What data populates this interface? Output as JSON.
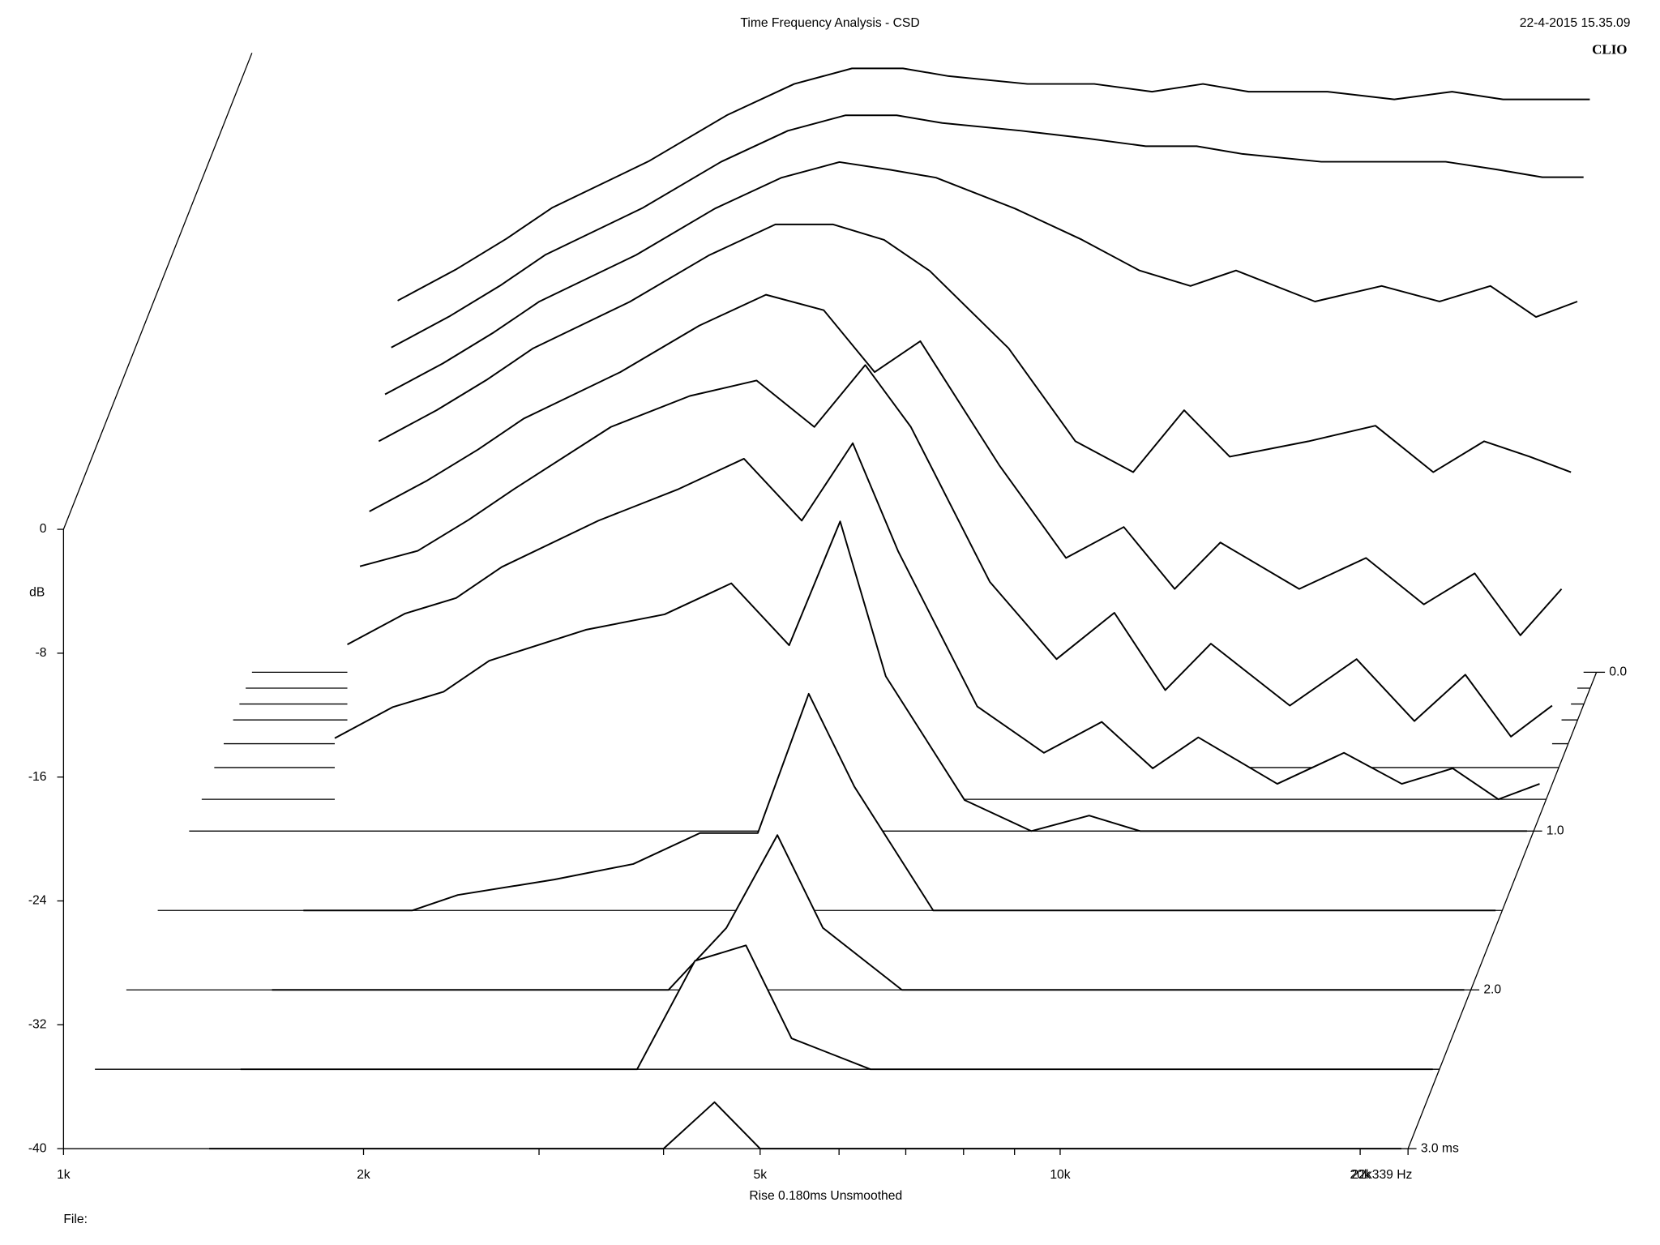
{
  "chart_data": {
    "type": "waterfall",
    "title": "Time Frequency Analysis - CSD",
    "timestamp": "22-4-2015 15.35.09",
    "brand": "CLIO",
    "footer": "Rise 0.180ms   Unsmoothed",
    "file_label": "File:",
    "ylabel": "dB",
    "color": "#000000",
    "xscale": "log",
    "x": [
      1400,
      1600,
      1800,
      2000,
      2500,
      3000,
      3500,
      4000,
      4500,
      5000,
      6000,
      7000,
      8000,
      9000,
      10000,
      12000,
      14000,
      16000,
      18000,
      20000,
      22000
    ],
    "xlim": [
      1000,
      22339
    ],
    "xticks": [
      {
        "value": 1000,
        "label": "1k"
      },
      {
        "value": 2000,
        "label": "2k"
      },
      {
        "value": 5000,
        "label": "5k"
      },
      {
        "value": 10000,
        "label": "10k"
      },
      {
        "value": 20000,
        "label": "20k"
      },
      {
        "value": 22339,
        "label": "22k339 Hz"
      }
    ],
    "xminor_ticks": [
      3000,
      4000,
      6000,
      7000,
      8000,
      9000
    ],
    "ylim": [
      -40,
      0
    ],
    "yticks": [
      0,
      -8,
      -16,
      -24,
      -32,
      -40
    ],
    "zlim": [
      0,
      3
    ],
    "zticks": [
      {
        "value": 0,
        "label": "0.0"
      },
      {
        "value": 1,
        "label": "1.0"
      },
      {
        "value": 2,
        "label": "2.0"
      },
      {
        "value": 3,
        "label": "3.0 ms"
      }
    ],
    "series": [
      {
        "time": 0,
        "values": [
          -16,
          -14,
          -12,
          -10,
          -7,
          -4,
          -2,
          -1,
          -1,
          -1.5,
          -2,
          -2,
          -2.5,
          -2,
          -2.5,
          -2.5,
          -3,
          -2.5,
          -3,
          -3,
          -3
        ]
      },
      {
        "time": 0.1,
        "values": [
          -18,
          -16,
          -14,
          -12,
          -9,
          -6,
          -4,
          -3,
          -3,
          -3.5,
          -4,
          -4.5,
          -5,
          -5,
          -5.5,
          -6,
          -6,
          -6,
          -6.5,
          -7,
          -7
        ]
      },
      {
        "time": 0.2,
        "values": [
          -20,
          -18,
          -16,
          -14,
          -11,
          -8,
          -6,
          -5,
          -5.5,
          -6,
          -8,
          -10,
          -12,
          -13,
          -12,
          -14,
          -13,
          -14,
          -13,
          -15,
          -14
        ]
      },
      {
        "time": 0.3,
        "values": [
          -22,
          -20,
          -18,
          -16,
          -13,
          -10,
          -8,
          -8,
          -9,
          -11,
          -16,
          -22,
          -24,
          -20,
          -23,
          -22,
          -21,
          -24,
          -22,
          -23,
          -24
        ]
      },
      {
        "time": 0.45,
        "values": [
          -25,
          -23,
          -21,
          -19,
          -16,
          -13,
          -11,
          -12,
          -16,
          -14,
          -22,
          -28,
          -26,
          -30,
          -27,
          -30,
          -28,
          -31,
          -29,
          -33,
          -30
        ]
      },
      {
        "time": 0.6,
        "values": [
          -27,
          -26,
          -24,
          -22,
          -18,
          -16,
          -15,
          -18,
          -14,
          -18,
          -28,
          -33,
          -30,
          -35,
          -32,
          -36,
          -33,
          -37,
          -34,
          -38,
          -36
        ]
      },
      {
        "time": 0.8,
        "values": [
          -30,
          -28,
          -27,
          -25,
          -22,
          -20,
          -18,
          -22,
          -17,
          -24,
          -34,
          -37,
          -35,
          -38,
          -36,
          -39,
          -37,
          -39,
          -38,
          -40,
          -39
        ]
      },
      {
        "time": 1.0,
        "values": [
          -34,
          -32,
          -31,
          -29,
          -27,
          -26,
          -24,
          -28,
          -20,
          -30,
          -38,
          -40,
          -39,
          -40,
          -40,
          -40,
          -40,
          -40,
          -40,
          -40,
          -40
        ]
      },
      {
        "time": 1.5,
        "values": [
          -40,
          -40,
          -40,
          -39,
          -38,
          -37,
          -35,
          -35,
          -26,
          -32,
          -40,
          -40,
          -40,
          -40,
          -40,
          -40,
          -40,
          -40,
          -40,
          -40,
          -40
        ]
      },
      {
        "time": 2.0,
        "values": [
          -40,
          -40,
          -40,
          -40,
          -40,
          -40,
          -40,
          -36,
          -30,
          -36,
          -40,
          -40,
          -40,
          -40,
          -40,
          -40,
          -40,
          -40,
          -40,
          -40,
          -40
        ]
      },
      {
        "time": 2.5,
        "values": [
          -40,
          -40,
          -40,
          -40,
          -40,
          -40,
          -40,
          -33,
          -32,
          -38,
          -40,
          -40,
          -40,
          -40,
          -40,
          -40,
          -40,
          -40,
          -40,
          -40,
          -40
        ]
      },
      {
        "time": 3.0,
        "values": [
          -40,
          -40,
          -40,
          -40,
          -40,
          -40,
          -40,
          -40,
          -37,
          -40,
          -40,
          -40,
          -40,
          -40,
          -40,
          -40,
          -40,
          -40,
          -40,
          -40,
          -40
        ]
      }
    ]
  }
}
